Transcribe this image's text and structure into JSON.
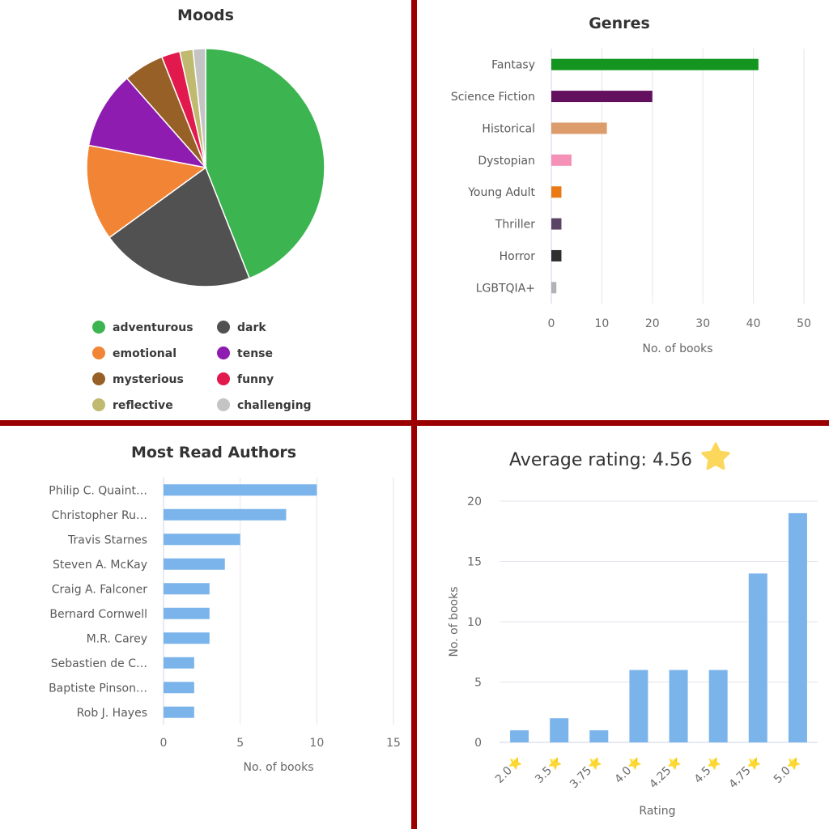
{
  "colors": {
    "divider": "#9b0000",
    "grid": "#e4e6ee",
    "axis": "#cfd6ea",
    "author_bar": "#7bb4ea",
    "rating_bar": "#7bb4ea",
    "star": "#fbd85c"
  },
  "chart_data": [
    {
      "type": "pie",
      "title": "Moods",
      "categories": [
        "adventurous",
        "dark",
        "emotional",
        "tense",
        "mysterious",
        "funny",
        "reflective",
        "challenging"
      ],
      "values": [
        44,
        21,
        13,
        10.5,
        5.5,
        2.5,
        1.8,
        1.7
      ],
      "value_unit": "percent (estimated)",
      "colors": [
        "#3cb44f",
        "#515151",
        "#f28535",
        "#8e1cb0",
        "#976027",
        "#e2194c",
        "#bfba6f",
        "#c4c4c4"
      ],
      "legend": {
        "placement": "bottom",
        "items": [
          {
            "label": "adventurous",
            "color": "#3cb44f"
          },
          {
            "label": "dark",
            "color": "#515151"
          },
          {
            "label": "emotional",
            "color": "#f28535"
          },
          {
            "label": "tense",
            "color": "#8e1cb0"
          },
          {
            "label": "mysterious",
            "color": "#976027"
          },
          {
            "label": "funny",
            "color": "#e2194c"
          },
          {
            "label": "reflective",
            "color": "#bfba6f"
          },
          {
            "label": "challenging",
            "color": "#c4c4c4"
          }
        ]
      }
    },
    {
      "type": "bar",
      "orientation": "horizontal",
      "title": "Genres",
      "categories": [
        "Fantasy",
        "Science Fiction",
        "Historical",
        "Dystopian",
        "Young Adult",
        "Thriller",
        "Horror",
        "LGBTQIA+"
      ],
      "values": [
        41,
        20,
        11,
        4,
        2,
        2,
        2,
        1
      ],
      "colors": [
        "#13951f",
        "#63105e",
        "#dd9c6b",
        "#f590b6",
        "#ea7a14",
        "#5a4566",
        "#2f2f2f",
        "#b3b3b3"
      ],
      "xlabel": "No. of books",
      "ylabel": "",
      "xlim": [
        0,
        50
      ],
      "xticks": [
        "0",
        "10",
        "20",
        "30",
        "40",
        "50"
      ],
      "grid": true
    },
    {
      "type": "bar",
      "orientation": "horizontal",
      "title": "Most Read Authors",
      "categories": [
        "Philip C. Quaint…",
        "Christopher Ru…",
        "Travis Starnes",
        "Steven A. McKay",
        "Craig A. Falconer",
        "Bernard Cornwell",
        "M.R. Carey",
        "Sebastien de C…",
        "Baptiste Pinson…",
        "Rob J. Hayes"
      ],
      "values": [
        10,
        8,
        5,
        4,
        3,
        3,
        3,
        2,
        2,
        2
      ],
      "xlabel": "No. of books",
      "ylabel": "",
      "xlim": [
        0,
        15
      ],
      "xticks": [
        "0",
        "5",
        "10",
        "15"
      ],
      "grid": true
    },
    {
      "type": "bar",
      "orientation": "vertical",
      "title": "Average rating: 4.56",
      "categories": [
        "2.0⭐",
        "3.5⭐",
        "3.75⭐",
        "4.0⭐",
        "4.25⭐",
        "4.5⭐",
        "4.75⭐",
        "5.0⭐"
      ],
      "values": [
        1,
        2,
        1,
        6,
        6,
        6,
        14,
        19
      ],
      "xlabel": "Rating",
      "ylabel": "No. of books",
      "ylim": [
        0,
        20
      ],
      "yticks": [
        "0",
        "5",
        "10",
        "15",
        "20"
      ],
      "grid": true
    }
  ]
}
